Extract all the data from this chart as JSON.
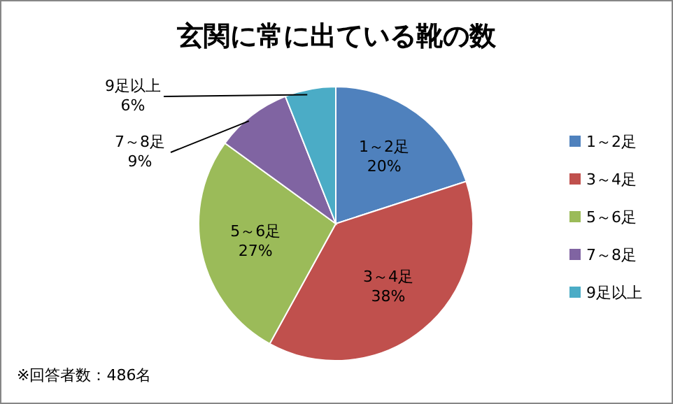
{
  "chart_data": {
    "type": "pie",
    "title": "玄関に常に出ている靴の数",
    "categories": [
      "1～2足",
      "3～4足",
      "5～6足",
      "7～8足",
      "9足以上"
    ],
    "values": [
      20,
      38,
      27,
      9,
      6
    ],
    "colors": [
      "#4f81bd",
      "#c0504d",
      "#9bbb59",
      "#8064a2",
      "#4bacc6"
    ],
    "value_labels": [
      "20%",
      "38%",
      "27%",
      "9%",
      "6%"
    ],
    "legend": "right",
    "annotations": [
      "※回答者数：486名"
    ]
  }
}
